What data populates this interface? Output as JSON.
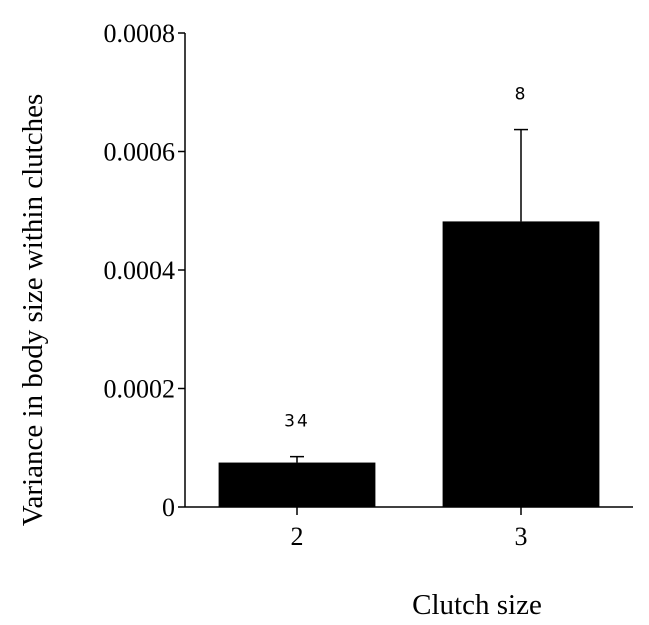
{
  "chart_data": {
    "type": "bar",
    "categories": [
      "2",
      "3"
    ],
    "values": [
      7.5e-05,
      0.000482
    ],
    "error_upper": [
      8.5e-05,
      0.000637
    ],
    "sample_sizes": [
      "34",
      "8"
    ],
    "xlabel": "Clutch size",
    "ylabel": "Variance in body size within clutches",
    "ylim": [
      0,
      0.0008
    ],
    "yticks": [
      "0",
      "0.0002",
      "0.0004",
      "0.0006",
      "0.0008"
    ],
    "ytick_values": [
      0,
      0.0002,
      0.0004,
      0.0006,
      0.0008
    ],
    "grid": false,
    "legend": "none",
    "bar_color": "#000000"
  }
}
